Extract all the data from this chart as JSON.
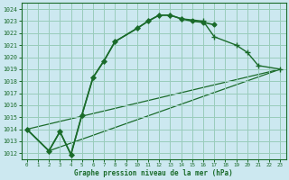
{
  "title": "Graphe pression niveau de la mer (hPa)",
  "background_color": "#cce8f0",
  "grid_color": "#99ccbb",
  "line_color": "#1a6b2a",
  "xlim": [
    -0.5,
    23.5
  ],
  "ylim": [
    1011.5,
    1024.5
  ],
  "xticks": [
    0,
    1,
    2,
    3,
    4,
    5,
    6,
    7,
    8,
    9,
    10,
    11,
    12,
    13,
    14,
    15,
    16,
    17,
    18,
    19,
    20,
    21,
    22,
    23
  ],
  "yticks": [
    1012,
    1013,
    1014,
    1015,
    1016,
    1017,
    1018,
    1019,
    1020,
    1021,
    1022,
    1023,
    1024
  ],
  "series1_x": [
    0,
    2,
    3,
    4,
    5,
    6,
    7,
    8,
    10,
    11,
    12,
    13,
    14,
    15,
    16,
    17
  ],
  "series1_y": [
    1014.0,
    1012.2,
    1013.8,
    1011.9,
    1015.2,
    1018.3,
    1019.7,
    1021.3,
    1022.4,
    1023.0,
    1023.5,
    1023.5,
    1023.2,
    1023.0,
    1022.9,
    1022.7
  ],
  "series2_x": [
    0,
    2,
    3,
    4,
    5,
    6,
    7,
    8,
    10,
    11,
    12,
    13,
    14,
    16,
    17,
    19,
    20,
    21,
    23
  ],
  "series2_y": [
    1014.0,
    1012.2,
    1013.8,
    1011.9,
    1015.2,
    1018.3,
    1019.7,
    1021.3,
    1022.4,
    1023.0,
    1023.5,
    1023.5,
    1023.2,
    1023.0,
    1021.7,
    1021.0,
    1020.4,
    1019.3,
    1019.0
  ],
  "line3_x": [
    0,
    23
  ],
  "line3_y": [
    1014.0,
    1019.0
  ],
  "line4_x": [
    2,
    23
  ],
  "line4_y": [
    1012.2,
    1019.0
  ]
}
